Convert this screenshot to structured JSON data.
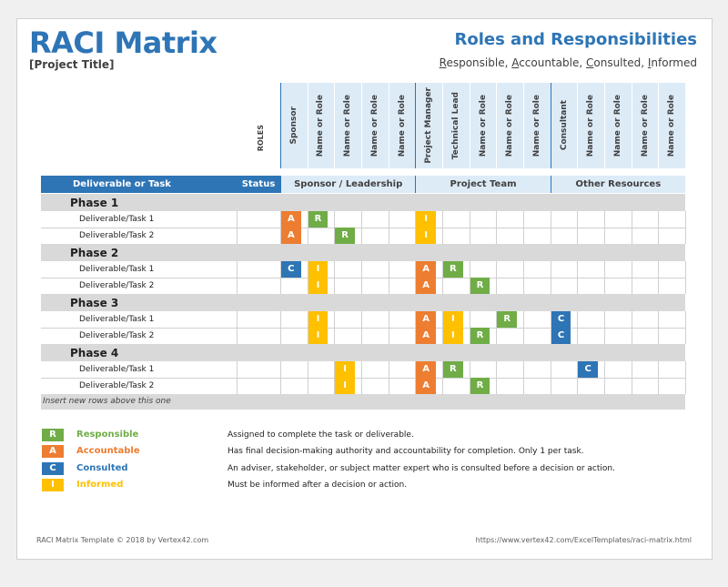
{
  "header": {
    "title": "RACI Matrix",
    "project_title": "[Project Title]",
    "right_title": "Roles and Responsibilities",
    "subtitle_parts": [
      {
        "u": "R",
        "t": "esponsible, "
      },
      {
        "u": "A",
        "t": "ccountable, "
      },
      {
        "u": "C",
        "t": "onsulted, "
      },
      {
        "u": "I",
        "t": "nformed"
      }
    ]
  },
  "roles_label": "ROLES",
  "roles": [
    "Sponsor",
    "Name or Role",
    "Name or Role",
    "Name or Role",
    "Name or Role",
    "Project Manager",
    "Technical Lead",
    "Name or Role",
    "Name or Role",
    "Name or Role",
    "Consultant",
    "Name or Role",
    "Name or Role",
    "Name or Role",
    "Name or Role"
  ],
  "table_header": {
    "deliverable": "Deliverable or Task",
    "status": "Status",
    "groups": [
      "Sponsor / Leadership",
      "Project Team",
      "Other Resources"
    ]
  },
  "phases": [
    {
      "name": "Phase 1",
      "tasks": [
        {
          "label": "Deliverable/Task 1",
          "cells": [
            "A",
            "R",
            "",
            "",
            "",
            "I",
            "",
            "",
            "",
            "",
            "",
            "",
            "",
            "",
            ""
          ]
        },
        {
          "label": "Deliverable/Task 2",
          "cells": [
            "A",
            "",
            "R",
            "",
            "",
            "I",
            "",
            "",
            "",
            "",
            "",
            "",
            "",
            "",
            ""
          ]
        }
      ]
    },
    {
      "name": "Phase 2",
      "tasks": [
        {
          "label": "Deliverable/Task 1",
          "cells": [
            "C",
            "I",
            "",
            "",
            "",
            "A",
            "R",
            "",
            "",
            "",
            "",
            "",
            "",
            "",
            ""
          ]
        },
        {
          "label": "Deliverable/Task 2",
          "cells": [
            "",
            "I",
            "",
            "",
            "",
            "A",
            "",
            "R",
            "",
            "",
            "",
            "",
            "",
            "",
            ""
          ]
        }
      ]
    },
    {
      "name": "Phase 3",
      "tasks": [
        {
          "label": "Deliverable/Task 1",
          "cells": [
            "",
            "I",
            "",
            "",
            "",
            "A",
            "I",
            "",
            "R",
            "",
            "C",
            "",
            "",
            "",
            ""
          ]
        },
        {
          "label": "Deliverable/Task 2",
          "cells": [
            "",
            "I",
            "",
            "",
            "",
            "A",
            "I",
            "R",
            "",
            "",
            "C",
            "",
            "",
            "",
            ""
          ]
        }
      ]
    },
    {
      "name": "Phase 4",
      "tasks": [
        {
          "label": "Deliverable/Task 1",
          "cells": [
            "",
            "",
            "I",
            "",
            "",
            "A",
            "R",
            "",
            "",
            "",
            "",
            "C",
            "",
            "",
            ""
          ]
        },
        {
          "label": "Deliverable/Task 2",
          "cells": [
            "",
            "",
            "I",
            "",
            "",
            "A",
            "",
            "R",
            "",
            "",
            "",
            "",
            "",
            "",
            ""
          ]
        }
      ]
    }
  ],
  "insert_note": "Insert new rows above this one",
  "legend": [
    {
      "letter": "R",
      "name": "Responsible",
      "desc": "Assigned to complete the task or deliverable."
    },
    {
      "letter": "A",
      "name": "Accountable",
      "desc": "Has final decision-making authority and accountability for completion. Only 1 per task."
    },
    {
      "letter": "C",
      "name": "Consulted",
      "desc": "An adviser, stakeholder, or subject matter expert who is consulted before a decision or action."
    },
    {
      "letter": "I",
      "name": "Informed",
      "desc": "Must be informed after a decision or action."
    }
  ],
  "colors": {
    "R": "#70ad47",
    "A": "#ed7d31",
    "C": "#2e75b6",
    "I": "#ffc000",
    "brand": "#2e75b6",
    "header_blue": "#2e75b6",
    "light_blue": "#ddebf7",
    "light_green": "#e2efda"
  },
  "legend_name_colors": {
    "R": "#70ad47",
    "A": "#ed7d31",
    "C": "#2e75b6",
    "I": "#ffc000"
  },
  "footer": {
    "left": "RACI Matrix Template © 2018 by Vertex42.com",
    "right": "https://www.vertex42.com/ExcelTemplates/raci-matrix.html"
  }
}
